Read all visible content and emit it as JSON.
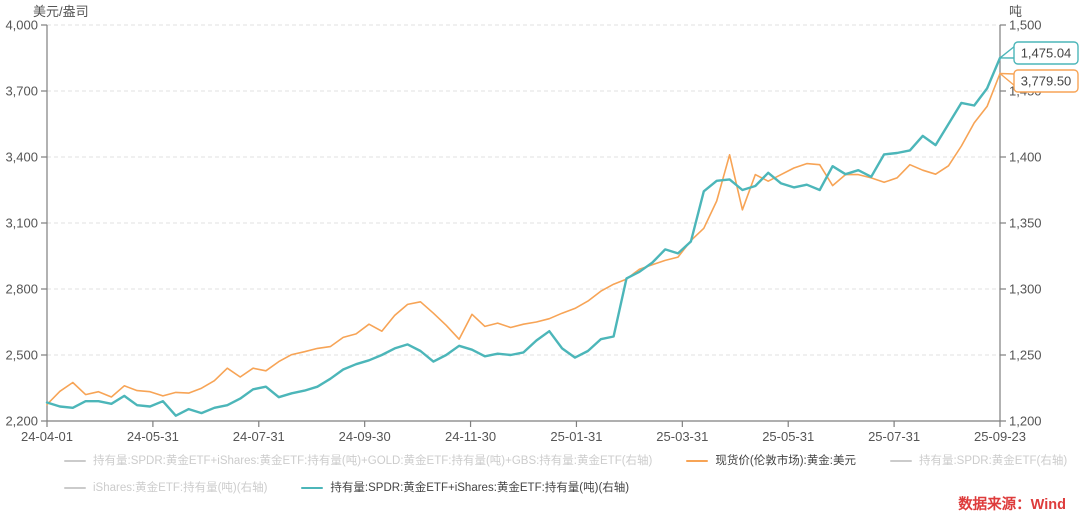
{
  "chart_data": {
    "type": "line",
    "title": "",
    "x_tick_labels": [
      "24-04-01",
      "24-05-31",
      "24-07-31",
      "24-09-30",
      "24-11-30",
      "25-01-31",
      "25-03-31",
      "25-05-31",
      "25-07-31",
      "25-09-23"
    ],
    "left_axis": {
      "unit": "美元/盎司",
      "min": 2200,
      "max": 4000,
      "tick_step": 300,
      "tick_labels": [
        "4,000",
        "3,700",
        "3,400",
        "3,100",
        "2,800",
        "2,500",
        "2,200"
      ]
    },
    "right_axis": {
      "unit": "吨",
      "min": 1200,
      "max": 1500,
      "tick_step": 50,
      "tick_labels": [
        "1,500",
        "1,450",
        "1,400",
        "1,350",
        "1,300",
        "1,250",
        "1,200"
      ]
    },
    "grid": "horizontal-dashed",
    "legend_position": "bottom",
    "series": [
      {
        "name": "现货价(伦敦市场):黄金:美元",
        "axis": "left",
        "color": "#F7A456",
        "width": 1.6,
        "last_value": 3779.5,
        "last_label": "3,779.50",
        "values": [
          2275,
          2335,
          2375,
          2320,
          2333,
          2309,
          2360,
          2338,
          2333,
          2314,
          2330,
          2327,
          2349,
          2383,
          2440,
          2400,
          2440,
          2428,
          2470,
          2502,
          2515,
          2530,
          2538,
          2580,
          2596,
          2640,
          2608,
          2680,
          2730,
          2742,
          2690,
          2635,
          2572,
          2685,
          2630,
          2645,
          2625,
          2640,
          2650,
          2665,
          2690,
          2712,
          2745,
          2790,
          2822,
          2845,
          2890,
          2910,
          2930,
          2945,
          3020,
          3076,
          3200,
          3410,
          3160,
          3320,
          3290,
          3320,
          3350,
          3370,
          3365,
          3270,
          3320,
          3320,
          3305,
          3285,
          3305,
          3365,
          3340,
          3322,
          3360,
          3450,
          3555,
          3630,
          3779.5
        ]
      },
      {
        "name": "持有量:SPDR:黄金ETF+iShares:黄金ETF:持有量(吨)(右轴)",
        "axis": "right",
        "color": "#4CB6B9",
        "width": 2.4,
        "last_value": 1475.04,
        "last_label": "1,475.04",
        "values": [
          1214,
          1211,
          1210,
          1215,
          1215,
          1213,
          1219,
          1212,
          1211,
          1215,
          1204,
          1209,
          1206,
          1210,
          1212,
          1217,
          1224,
          1226,
          1218,
          1221,
          1223,
          1226,
          1232,
          1239,
          1243,
          1246,
          1250,
          1255,
          1258,
          1253,
          1245,
          1250,
          1257,
          1254,
          1249,
          1251,
          1250,
          1252,
          1261,
          1268,
          1255,
          1248,
          1253,
          1262,
          1264,
          1308,
          1313,
          1320,
          1330,
          1327,
          1336,
          1374,
          1382,
          1383,
          1375,
          1378,
          1388,
          1380,
          1377,
          1379,
          1375,
          1393,
          1387,
          1390,
          1385,
          1402,
          1403,
          1405,
          1416,
          1409,
          1425,
          1441,
          1439,
          1452,
          1475.04
        ]
      }
    ]
  },
  "legend": {
    "rows": [
      [
        {
          "label": "持有量:SPDR:黄金ETF+iShares:黄金ETF:持有量(吨)+GOLD:黄金ETF:持有量(吨)+GBS:持有量:黄金ETF(右轴)",
          "color": "#CBCBCB",
          "active": false
        },
        {
          "label": "现货价(伦敦市场):黄金:美元",
          "color": "#F7A456",
          "active": true
        },
        {
          "label": "持有量:SPDR:黄金ETF(右轴)",
          "color": "#CBCBCB",
          "active": false
        }
      ],
      [
        {
          "label": "iShares:黄金ETF:持有量(吨)(右轴)",
          "color": "#CBCBCB",
          "active": false
        },
        {
          "label": "持有量:SPDR:黄金ETF+iShares:黄金ETF:持有量(吨)(右轴)",
          "color": "#4CB6B9",
          "active": true
        }
      ]
    ],
    "active_text_color": "#444444",
    "disabled_text_color": "#CCCCCC"
  },
  "source": {
    "label": "数据来源：Wind",
    "color": "#DE3C3C"
  }
}
